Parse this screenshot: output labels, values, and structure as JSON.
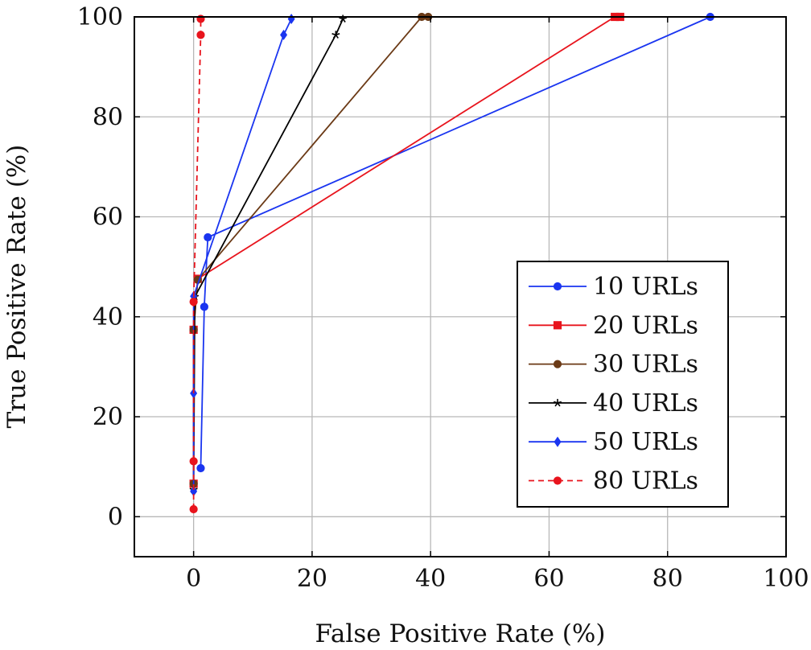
{
  "chart_data": {
    "type": "line",
    "title": "",
    "xlabel": "False Positive Rate (%)",
    "ylabel": "True Positive Rate (%)",
    "xlim": [
      -10,
      100
    ],
    "ylim": [
      -8,
      100
    ],
    "xticks": [
      0,
      20,
      40,
      60,
      80,
      100
    ],
    "yticks": [
      0,
      20,
      40,
      60,
      80,
      100
    ],
    "grid": true,
    "legend_position": "right",
    "series": [
      {
        "name": "10 URLs",
        "color": "#1a35f0",
        "marker": "circle",
        "dashed": false,
        "points": [
          [
            1.2,
            9.7
          ],
          [
            1.8,
            42.0
          ],
          [
            2.4,
            55.9
          ],
          [
            87.2,
            100.0
          ]
        ]
      },
      {
        "name": "20 URLs",
        "color": "#e8141d",
        "marker": "square",
        "dashed": false,
        "points": [
          [
            0.0,
            6.6
          ],
          [
            0.0,
            37.4
          ],
          [
            0.7,
            47.6
          ],
          [
            71.1,
            100.0
          ],
          [
            72.0,
            100.0
          ]
        ]
      },
      {
        "name": "30 URLs",
        "color": "#6b3a16",
        "marker": "circle",
        "dashed": false,
        "points": [
          [
            0.0,
            6.6
          ],
          [
            0.0,
            37.4
          ],
          [
            0.7,
            47.4
          ],
          [
            38.5,
            100.0
          ],
          [
            39.6,
            100.0
          ]
        ]
      },
      {
        "name": "40 URLs",
        "color": "#000000",
        "marker": "star",
        "dashed": false,
        "points": [
          [
            0.0,
            5.4
          ],
          [
            0.2,
            44.0
          ],
          [
            24.0,
            96.4
          ],
          [
            25.2,
            99.6
          ]
        ]
      },
      {
        "name": "50 URLs",
        "color": "#1a35f0",
        "marker": "diamond",
        "dashed": false,
        "points": [
          [
            0.0,
            5.1
          ],
          [
            0.0,
            24.7
          ],
          [
            0.0,
            44.1
          ],
          [
            15.2,
            96.4
          ],
          [
            16.5,
            99.6
          ]
        ]
      },
      {
        "name": "80 URLs",
        "color": "#e8141d",
        "marker": "circle",
        "dashed": true,
        "points": [
          [
            0.0,
            1.5
          ],
          [
            0.0,
            11.1
          ],
          [
            0.0,
            43.0
          ],
          [
            1.2,
            96.4
          ],
          [
            1.2,
            99.6
          ]
        ]
      }
    ]
  }
}
